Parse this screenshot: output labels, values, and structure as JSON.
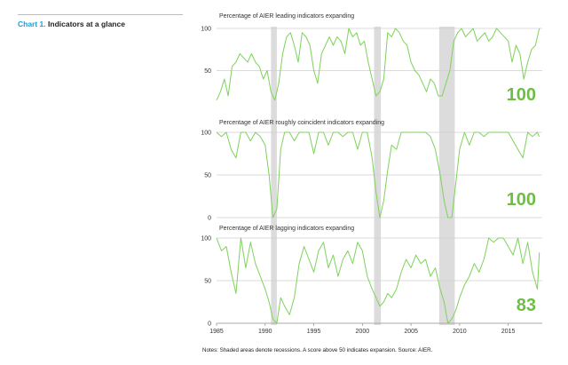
{
  "header": {
    "chart_label": "Chart 1.",
    "chart_title": "Indicators at a glance"
  },
  "notes": "Notes: Shaded areas denote recessions. A score above 50 indicates expansion. Source: AIER.",
  "colors": {
    "line": "#7ed25b",
    "latest_value": "#6cbf43",
    "recession": "#dcdcdc",
    "axis": "#9a9a9a",
    "label_accent": "#1a9fd8"
  },
  "chart_data": [
    {
      "type": "line",
      "title": "Percentage of AIER leading indicators expanding",
      "ylim": [
        0,
        100
      ],
      "yticks": [
        50,
        100
      ],
      "latest_value": "100",
      "xlim": [
        1985,
        2018.5
      ],
      "recessions": [
        [
          1990.6,
          1991.2
        ],
        [
          2001.2,
          2001.9
        ],
        [
          2007.9,
          2009.5
        ]
      ],
      "series": [
        {
          "x": [
            1985,
            1985.4,
            1985.8,
            1986.2,
            1986.6,
            1987,
            1987.4,
            1987.8,
            1988.2,
            1988.6,
            1989,
            1989.4,
            1989.8,
            1990.2,
            1990.6,
            1991,
            1991.4,
            1991.8,
            1992.2,
            1992.6,
            1993,
            1993.4,
            1993.8,
            1994.2,
            1994.6,
            1995,
            1995.4,
            1995.8,
            1996.2,
            1996.6,
            1997,
            1997.4,
            1997.8,
            1998.2,
            1998.6,
            1999,
            1999.4,
            1999.8,
            2000.2,
            2000.6,
            2001,
            2001.4,
            2001.8,
            2002.2,
            2002.6,
            2003,
            2003.4,
            2003.8,
            2004.2,
            2004.6,
            2005,
            2005.4,
            2005.8,
            2006.2,
            2006.6,
            2007,
            2007.4,
            2007.8,
            2008.2,
            2008.6,
            2009,
            2009.4,
            2009.8,
            2010.2,
            2010.6,
            2011,
            2011.4,
            2011.8,
            2012.2,
            2012.6,
            2013,
            2013.4,
            2013.8,
            2014.2,
            2014.6,
            2015,
            2015.4,
            2015.8,
            2016.2,
            2016.6,
            2017,
            2017.4,
            2017.8,
            2018.2
          ],
          "values": [
            15,
            25,
            40,
            20,
            55,
            60,
            70,
            65,
            60,
            70,
            60,
            55,
            40,
            50,
            25,
            15,
            35,
            70,
            90,
            95,
            80,
            60,
            95,
            90,
            80,
            50,
            35,
            70,
            80,
            90,
            80,
            90,
            85,
            70,
            100,
            90,
            95,
            80,
            85,
            60,
            40,
            20,
            25,
            40,
            95,
            90,
            100,
            95,
            85,
            80,
            60,
            50,
            45,
            35,
            25,
            40,
            35,
            20,
            20,
            35,
            50,
            85,
            95,
            100,
            90,
            95,
            100,
            85,
            90,
            95,
            85,
            90,
            100,
            95,
            90,
            85,
            60,
            80,
            70,
            40,
            60,
            75,
            80,
            100
          ]
        }
      ]
    },
    {
      "type": "line",
      "title": "Percentage of AIER roughly coincident indicators expanding",
      "ylim": [
        0,
        100
      ],
      "yticks": [
        0,
        50,
        100
      ],
      "latest_value": "100",
      "xlim": [
        1985,
        2018.5
      ],
      "recessions": [
        [
          1990.6,
          1991.2
        ],
        [
          2001.2,
          2001.9
        ],
        [
          2007.9,
          2009.5
        ]
      ],
      "series": [
        {
          "x": [
            1985,
            1985.5,
            1986,
            1986.5,
            1987,
            1987.5,
            1988,
            1988.5,
            1989,
            1989.5,
            1990,
            1990.4,
            1990.8,
            1991.2,
            1991.6,
            1992,
            1992.5,
            1993,
            1993.5,
            1994,
            1994.5,
            1995,
            1995.5,
            1996,
            1996.5,
            1997,
            1997.5,
            1998,
            1998.5,
            1999,
            1999.5,
            2000,
            2000.5,
            2001,
            2001.4,
            2001.8,
            2002.2,
            2002.6,
            2003,
            2003.5,
            2004,
            2004.5,
            2005,
            2005.5,
            2006,
            2006.5,
            2007,
            2007.5,
            2008,
            2008.4,
            2008.8,
            2009.2,
            2009.6,
            2010,
            2010.5,
            2011,
            2011.5,
            2012,
            2012.5,
            2013,
            2013.5,
            2014,
            2014.5,
            2015,
            2015.5,
            2016,
            2016.5,
            2017,
            2017.5,
            2018,
            2018.2
          ],
          "values": [
            100,
            95,
            100,
            80,
            70,
            100,
            100,
            90,
            100,
            95,
            85,
            50,
            0,
            10,
            80,
            100,
            100,
            90,
            100,
            100,
            100,
            75,
            100,
            100,
            85,
            100,
            100,
            95,
            100,
            100,
            80,
            100,
            100,
            70,
            30,
            0,
            20,
            55,
            85,
            80,
            100,
            100,
            100,
            100,
            100,
            100,
            95,
            80,
            50,
            20,
            0,
            0,
            40,
            80,
            100,
            85,
            100,
            100,
            95,
            100,
            100,
            100,
            100,
            100,
            90,
            80,
            70,
            100,
            95,
            100,
            95
          ]
        }
      ]
    },
    {
      "type": "line",
      "title": "Percentage of AIER lagging indicators expanding",
      "ylim": [
        0,
        100
      ],
      "yticks": [
        0,
        50,
        100
      ],
      "latest_value": "83",
      "xlim": [
        1985,
        2018.5
      ],
      "xticks": [
        1985,
        1990,
        1995,
        2000,
        2005,
        2010,
        2015
      ],
      "recessions": [
        [
          1990.6,
          1991.2
        ],
        [
          2001.2,
          2001.9
        ],
        [
          2007.9,
          2009.5
        ]
      ],
      "series": [
        {
          "x": [
            1985,
            1985.5,
            1986,
            1986.5,
            1987,
            1987.5,
            1988,
            1988.5,
            1989,
            1989.5,
            1990,
            1990.4,
            1990.8,
            1991.2,
            1991.6,
            1992,
            1992.5,
            1993,
            1993.5,
            1994,
            1994.5,
            1995,
            1995.5,
            1996,
            1996.5,
            1997,
            1997.5,
            1998,
            1998.5,
            1999,
            1999.5,
            2000,
            2000.5,
            2001,
            2001.4,
            2001.8,
            2002.2,
            2002.6,
            2003,
            2003.5,
            2004,
            2004.5,
            2005,
            2005.5,
            2006,
            2006.5,
            2007,
            2007.5,
            2008,
            2008.4,
            2008.8,
            2009.2,
            2009.6,
            2010,
            2010.5,
            2011,
            2011.5,
            2012,
            2012.5,
            2013,
            2013.5,
            2014,
            2014.5,
            2015,
            2015.5,
            2016,
            2016.5,
            2017,
            2017.5,
            2018,
            2018.2
          ],
          "values": [
            100,
            85,
            90,
            60,
            35,
            100,
            65,
            95,
            70,
            55,
            40,
            25,
            5,
            0,
            30,
            20,
            10,
            30,
            70,
            90,
            75,
            60,
            85,
            95,
            65,
            80,
            55,
            75,
            85,
            70,
            95,
            85,
            55,
            40,
            30,
            20,
            25,
            35,
            30,
            40,
            60,
            75,
            65,
            80,
            70,
            75,
            55,
            65,
            40,
            25,
            0,
            5,
            15,
            30,
            45,
            55,
            70,
            60,
            75,
            100,
            95,
            100,
            100,
            90,
            80,
            100,
            70,
            95,
            60,
            40,
            83
          ]
        }
      ]
    }
  ]
}
